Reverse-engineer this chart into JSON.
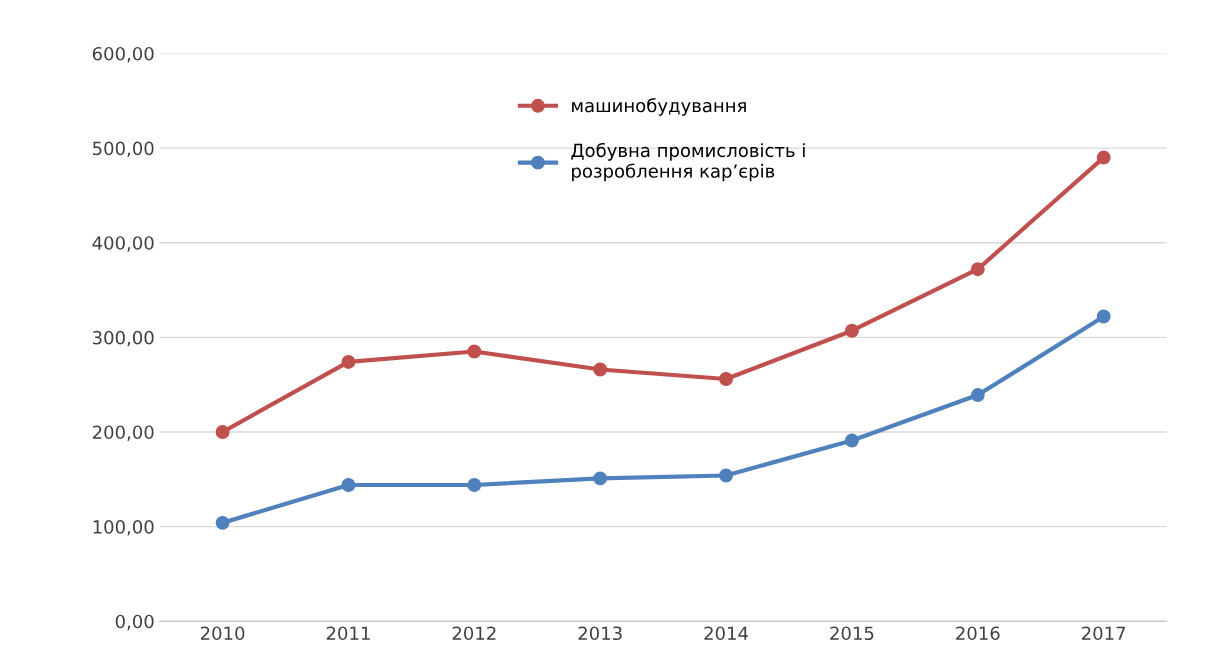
{
  "chart_data": {
    "type": "line",
    "categories": [
      "2010",
      "2011",
      "2012",
      "2013",
      "2014",
      "2015",
      "2016",
      "2017"
    ],
    "series": [
      {
        "name": "машинобудування",
        "color": "#c0504d",
        "values": [
          200,
          274,
          285,
          266,
          256,
          307,
          372,
          490
        ]
      },
      {
        "name": "Добувна промисловість і\nрозроблення кар’єрів",
        "color": "#4f81bd",
        "values": [
          104,
          144,
          144,
          151,
          154,
          191,
          239,
          322
        ]
      }
    ],
    "ylim": [
      0,
      600
    ],
    "yticks": [
      {
        "value": 0,
        "label": "0,00"
      },
      {
        "value": 100,
        "label": "100,00"
      },
      {
        "value": 200,
        "label": "200,00"
      },
      {
        "value": 300,
        "label": "300,00"
      },
      {
        "value": 400,
        "label": "400,00"
      },
      {
        "value": 500,
        "label": "500,00"
      },
      {
        "value": 600,
        "label": "600,00"
      }
    ],
    "grid": "y",
    "legend": "top",
    "marker": "circle",
    "line_style": "solid"
  }
}
